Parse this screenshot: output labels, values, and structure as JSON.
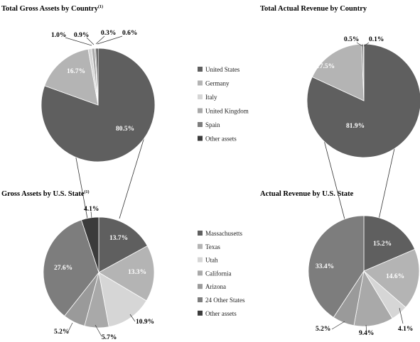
{
  "colors": {
    "dark": "#5f5f5f",
    "mid_light": "#b4b4b4",
    "very_light": "#d6d6d6",
    "light_gray": "#a9a9a9",
    "medium": "#7d7d7d",
    "darkest": "#3b3b3b",
    "connector": "#333333"
  },
  "legend_top": [
    {
      "label": "United States",
      "color": "#5f5f5f"
    },
    {
      "label": "Germany",
      "color": "#b4b4b4"
    },
    {
      "label": "Italy",
      "color": "#d6d6d6"
    },
    {
      "label": "United Kingdom",
      "color": "#a9a9a9"
    },
    {
      "label": "Spain",
      "color": "#7d7d7d"
    },
    {
      "label": "Other assets",
      "color": "#3b3b3b"
    }
  ],
  "legend_bottom": [
    {
      "label": "Massachusetts",
      "color": "#5f5f5f"
    },
    {
      "label": "Texas",
      "color": "#b4b4b4"
    },
    {
      "label": "Utah",
      "color": "#d6d6d6"
    },
    {
      "label": "California",
      "color": "#a9a9a9"
    },
    {
      "label": "Arizona",
      "color": "#9a9a9a"
    },
    {
      "label": "24 Other States",
      "color": "#7d7d7d"
    },
    {
      "label": "Other assets",
      "color": "#3b3b3b"
    }
  ],
  "chart_data": [
    {
      "type": "pie",
      "title": "Total Gross Assets by Country",
      "title_superscript": "(1)",
      "categories": [
        "United States",
        "Germany",
        "Italy",
        "United Kingdom",
        "Spain",
        "Other assets"
      ],
      "values": [
        80.5,
        16.7,
        1.0,
        0.9,
        0.3,
        0.6
      ],
      "labels": [
        "80.5%",
        "16.7%",
        "1.0%",
        "0.9%",
        "0.3%",
        "0.6%"
      ]
    },
    {
      "type": "pie",
      "title": "Total Actual Revenue by Country",
      "categories": [
        "United States",
        "Germany",
        "Italy",
        "United Kingdom",
        "Spain",
        "Other assets"
      ],
      "values": [
        81.9,
        17.5,
        0,
        0,
        0.5,
        0.1
      ],
      "labels": [
        "81.9%",
        "17.5%",
        "",
        "",
        "0.5%",
        "0.1%"
      ]
    },
    {
      "type": "pie",
      "title": "Gross Assets by U.S. State",
      "title_superscript": "(1)",
      "categories": [
        "Massachusetts",
        "Texas",
        "Utah",
        "California",
        "Arizona",
        "24 Other States",
        "Other assets"
      ],
      "values": [
        13.7,
        13.3,
        10.9,
        5.7,
        5.2,
        27.6,
        4.1
      ],
      "labels": [
        "13.7%",
        "13.3%",
        "10.9%",
        "5.7%",
        "5.2%",
        "27.6%",
        "4.1%"
      ]
    },
    {
      "type": "pie",
      "title": "Actual Revenue by U.S. State",
      "categories": [
        "Massachusetts",
        "Texas",
        "Utah",
        "California",
        "Arizona",
        "24 Other States"
      ],
      "values": [
        15.2,
        14.6,
        4.1,
        9.4,
        5.2,
        33.4
      ],
      "labels": [
        "15.2%",
        "14.6%",
        "4.1%",
        "9.4%",
        "5.2%",
        "33.4%"
      ]
    }
  ]
}
